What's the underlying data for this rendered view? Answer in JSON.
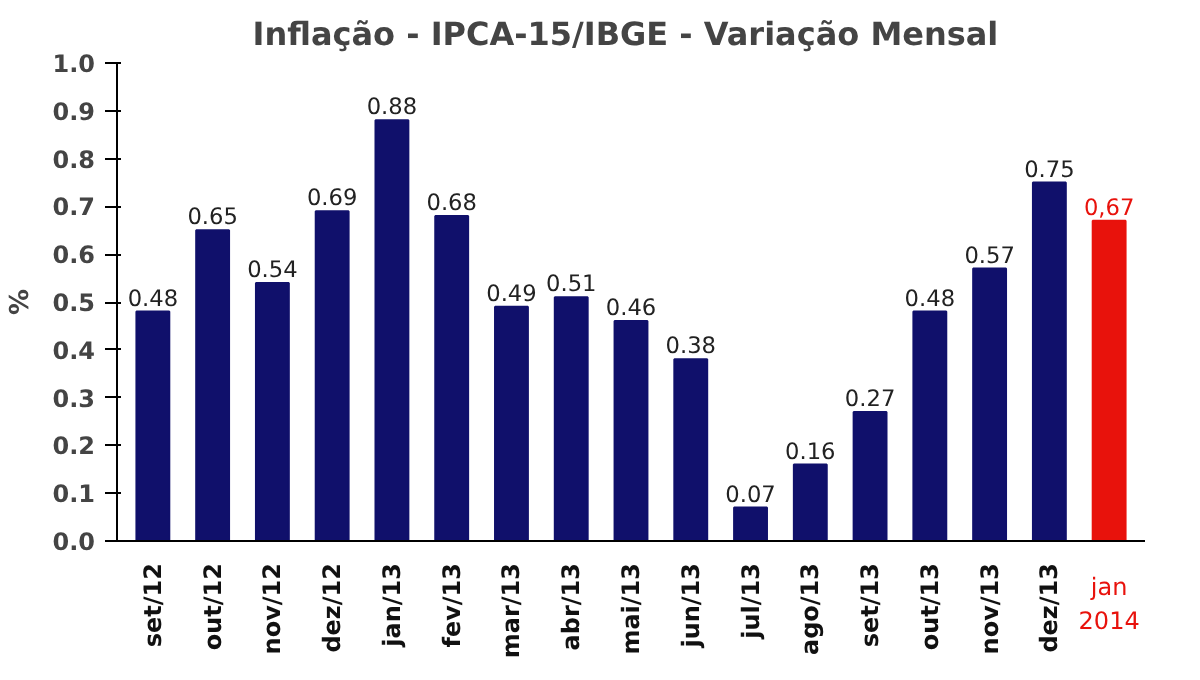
{
  "chart_data": {
    "type": "bar",
    "title": "Inflação - IPCA-15/IBGE  - Variação Mensal",
    "ylabel": "%",
    "categories": [
      "set/12",
      "out/12",
      "nov/12",
      "dez/12",
      "jan/13",
      "fev/13",
      "mar/13",
      "abr/13",
      "mai/13",
      "jun/13",
      "jul/13",
      "ago/13",
      "set/13",
      "out/13",
      "nov/13",
      "dez/13",
      "jan\n2014"
    ],
    "values": [
      0.48,
      0.65,
      0.54,
      0.69,
      0.88,
      0.68,
      0.49,
      0.51,
      0.46,
      0.38,
      0.07,
      0.16,
      0.27,
      0.48,
      0.57,
      0.75,
      0.67
    ],
    "colors": [
      "#10106b",
      "#10106b",
      "#10106b",
      "#10106b",
      "#10106b",
      "#10106b",
      "#10106b",
      "#10106b",
      "#10106b",
      "#10106b",
      "#10106b",
      "#10106b",
      "#10106b",
      "#10106b",
      "#10106b",
      "#10106b",
      "#e8120c"
    ],
    "value_labels": [
      "0.48",
      "0.65",
      "0.54",
      "0.69",
      "0.88",
      "0.68",
      "0.49",
      "0.51",
      "0.46",
      "0.38",
      "0.07",
      "0.16",
      "0.27",
      "0.48",
      "0.57",
      "0.75",
      "0,67"
    ],
    "ylim": [
      0,
      1.0
    ],
    "yticks": [
      {
        "value": 0,
        "label": "0.0"
      },
      {
        "value": 0.1,
        "label": "0.1"
      },
      {
        "value": 0.2,
        "label": "0.2"
      },
      {
        "value": 0.3,
        "label": "0.3"
      },
      {
        "value": 0.4,
        "label": "0.4"
      },
      {
        "value": 0.5,
        "label": "0.5"
      },
      {
        "value": 0.6,
        "label": "0.6"
      },
      {
        "value": 0.7,
        "label": "0.7"
      },
      {
        "value": 0.8,
        "label": "0.8"
      },
      {
        "value": 0.9,
        "label": "0.9"
      },
      {
        "value": 1.0,
        "label": "1.0"
      }
    ],
    "grid": false
  }
}
